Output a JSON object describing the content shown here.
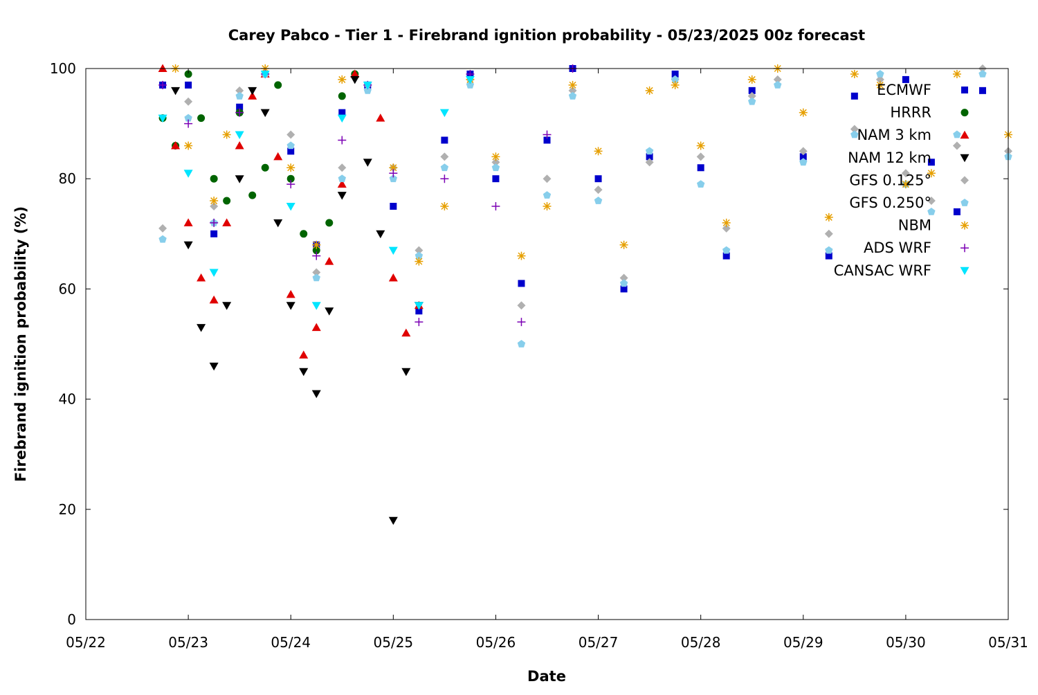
{
  "chart_data": {
    "type": "scatter",
    "title": "Carey Pabco - Tier 1 - Firebrand ignition probability - 05/23/2025 00z forecast",
    "xlabel": "Date",
    "ylabel": "Firebrand ignition probability (%)",
    "x_ticks": [
      "05/22",
      "05/23",
      "05/24",
      "05/25",
      "05/26",
      "05/27",
      "05/28",
      "05/29",
      "05/30",
      "05/31"
    ],
    "y_ticks": [
      "0",
      "20",
      "40",
      "60",
      "80",
      "100"
    ],
    "xlim": [
      "2025-05-22 00:00",
      "2025-05-31 00:00"
    ],
    "ylim": [
      0,
      100
    ],
    "grid": false,
    "legend_position": "top-right",
    "series": [
      {
        "name": "ECMWF",
        "marker": "square",
        "color": "#0000cc",
        "points": [
          [
            "2025-05-22 18:00",
            97
          ],
          [
            "2025-05-23 00:00",
            97
          ],
          [
            "2025-05-23 06:00",
            70
          ],
          [
            "2025-05-23 12:00",
            93
          ],
          [
            "2025-05-23 18:00",
            99
          ],
          [
            "2025-05-24 00:00",
            85
          ],
          [
            "2025-05-24 06:00",
            68
          ],
          [
            "2025-05-24 12:00",
            92
          ],
          [
            "2025-05-24 18:00",
            97
          ],
          [
            "2025-05-25 00:00",
            75
          ],
          [
            "2025-05-25 06:00",
            56
          ],
          [
            "2025-05-25 12:00",
            87
          ],
          [
            "2025-05-25 18:00",
            99
          ],
          [
            "2025-05-26 00:00",
            80
          ],
          [
            "2025-05-26 06:00",
            61
          ],
          [
            "2025-05-26 12:00",
            87
          ],
          [
            "2025-05-26 18:00",
            100
          ],
          [
            "2025-05-27 00:00",
            80
          ],
          [
            "2025-05-27 06:00",
            60
          ],
          [
            "2025-05-27 12:00",
            84
          ],
          [
            "2025-05-27 18:00",
            99
          ],
          [
            "2025-05-28 00:00",
            82
          ],
          [
            "2025-05-28 06:00",
            66
          ],
          [
            "2025-05-28 12:00",
            96
          ],
          [
            "2025-05-29 00:00",
            84
          ],
          [
            "2025-05-29 06:00",
            66
          ],
          [
            "2025-05-29 12:00",
            95
          ],
          [
            "2025-05-30 00:00",
            98
          ],
          [
            "2025-05-30 06:00",
            83
          ],
          [
            "2025-05-30 12:00",
            74
          ],
          [
            "2025-05-30 18:00",
            96
          ]
        ]
      },
      {
        "name": "HRRR",
        "marker": "circle",
        "color": "#006400",
        "points": [
          [
            "2025-05-22 18:00",
            91
          ],
          [
            "2025-05-22 21:00",
            86
          ],
          [
            "2025-05-23 00:00",
            99
          ],
          [
            "2025-05-23 03:00",
            91
          ],
          [
            "2025-05-23 06:00",
            80
          ],
          [
            "2025-05-23 09:00",
            76
          ],
          [
            "2025-05-23 12:00",
            92
          ],
          [
            "2025-05-23 15:00",
            77
          ],
          [
            "2025-05-23 18:00",
            82
          ],
          [
            "2025-05-23 21:00",
            97
          ],
          [
            "2025-05-24 00:00",
            80
          ],
          [
            "2025-05-24 03:00",
            70
          ],
          [
            "2025-05-24 06:00",
            67
          ],
          [
            "2025-05-24 09:00",
            72
          ],
          [
            "2025-05-24 12:00",
            95
          ],
          [
            "2025-05-24 15:00",
            99
          ]
        ]
      },
      {
        "name": "NAM 3 km",
        "marker": "triangle-up",
        "color": "#e00000",
        "points": [
          [
            "2025-05-22 18:00",
            100
          ],
          [
            "2025-05-22 21:00",
            86
          ],
          [
            "2025-05-23 00:00",
            72
          ],
          [
            "2025-05-23 03:00",
            62
          ],
          [
            "2025-05-23 06:00",
            58
          ],
          [
            "2025-05-23 09:00",
            72
          ],
          [
            "2025-05-23 12:00",
            86
          ],
          [
            "2025-05-23 15:00",
            95
          ],
          [
            "2025-05-23 18:00",
            99
          ],
          [
            "2025-05-23 21:00",
            84
          ],
          [
            "2025-05-24 00:00",
            59
          ],
          [
            "2025-05-24 03:00",
            48
          ],
          [
            "2025-05-24 06:00",
            53
          ],
          [
            "2025-05-24 09:00",
            65
          ],
          [
            "2025-05-24 12:00",
            79
          ],
          [
            "2025-05-24 15:00",
            99
          ],
          [
            "2025-05-24 21:00",
            91
          ],
          [
            "2025-05-25 00:00",
            62
          ],
          [
            "2025-05-25 03:00",
            52
          ],
          [
            "2025-05-25 06:00",
            57
          ]
        ]
      },
      {
        "name": "NAM 12 km",
        "marker": "triangle-down",
        "color": "#000000",
        "points": [
          [
            "2025-05-22 21:00",
            96
          ],
          [
            "2025-05-23 00:00",
            68
          ],
          [
            "2025-05-23 03:00",
            53
          ],
          [
            "2025-05-23 06:00",
            46
          ],
          [
            "2025-05-23 09:00",
            57
          ],
          [
            "2025-05-23 12:00",
            80
          ],
          [
            "2025-05-23 15:00",
            96
          ],
          [
            "2025-05-23 18:00",
            92
          ],
          [
            "2025-05-23 21:00",
            72
          ],
          [
            "2025-05-24 00:00",
            57
          ],
          [
            "2025-05-24 03:00",
            45
          ],
          [
            "2025-05-24 06:00",
            41
          ],
          [
            "2025-05-24 09:00",
            56
          ],
          [
            "2025-05-24 12:00",
            77
          ],
          [
            "2025-05-24 15:00",
            98
          ],
          [
            "2025-05-24 18:00",
            83
          ],
          [
            "2025-05-24 21:00",
            70
          ],
          [
            "2025-05-25 00:00",
            18
          ],
          [
            "2025-05-25 03:00",
            45
          ],
          [
            "2025-05-25 06:00",
            57
          ]
        ]
      },
      {
        "name": "GFS 0.125°",
        "marker": "diamond",
        "color": "#b0b0b0",
        "points": [
          [
            "2025-05-22 18:00",
            71
          ],
          [
            "2025-05-23 00:00",
            94
          ],
          [
            "2025-05-23 06:00",
            75
          ],
          [
            "2025-05-23 12:00",
            96
          ],
          [
            "2025-05-23 18:00",
            99
          ],
          [
            "2025-05-24 00:00",
            88
          ],
          [
            "2025-05-24 06:00",
            63
          ],
          [
            "2025-05-24 12:00",
            82
          ],
          [
            "2025-05-24 18:00",
            97
          ],
          [
            "2025-05-25 00:00",
            82
          ],
          [
            "2025-05-25 06:00",
            67
          ],
          [
            "2025-05-25 12:00",
            84
          ],
          [
            "2025-05-25 18:00",
            98
          ],
          [
            "2025-05-26 00:00",
            83
          ],
          [
            "2025-05-26 06:00",
            57
          ],
          [
            "2025-05-26 12:00",
            80
          ],
          [
            "2025-05-26 18:00",
            96
          ],
          [
            "2025-05-27 00:00",
            78
          ],
          [
            "2025-05-27 06:00",
            62
          ],
          [
            "2025-05-27 12:00",
            83
          ],
          [
            "2025-05-27 18:00",
            98
          ],
          [
            "2025-05-28 00:00",
            84
          ],
          [
            "2025-05-28 06:00",
            71
          ],
          [
            "2025-05-28 12:00",
            95
          ],
          [
            "2025-05-28 18:00",
            98
          ],
          [
            "2025-05-29 00:00",
            85
          ],
          [
            "2025-05-29 06:00",
            70
          ],
          [
            "2025-05-29 12:00",
            89
          ],
          [
            "2025-05-29 18:00",
            98
          ],
          [
            "2025-05-30 00:00",
            81
          ],
          [
            "2025-05-30 06:00",
            76
          ],
          [
            "2025-05-30 12:00",
            86
          ],
          [
            "2025-05-30 18:00",
            100
          ],
          [
            "2025-05-31 00:00",
            85
          ]
        ]
      },
      {
        "name": "GFS 0.250°",
        "marker": "pentagon",
        "color": "#87ceeb",
        "points": [
          [
            "2025-05-22 18:00",
            69
          ],
          [
            "2025-05-23 00:00",
            91
          ],
          [
            "2025-05-23 06:00",
            72
          ],
          [
            "2025-05-23 12:00",
            95
          ],
          [
            "2025-05-23 18:00",
            99
          ],
          [
            "2025-05-24 00:00",
            86
          ],
          [
            "2025-05-24 06:00",
            62
          ],
          [
            "2025-05-24 12:00",
            80
          ],
          [
            "2025-05-24 18:00",
            96
          ],
          [
            "2025-05-25 00:00",
            80
          ],
          [
            "2025-05-25 06:00",
            66
          ],
          [
            "2025-05-25 12:00",
            82
          ],
          [
            "2025-05-25 18:00",
            97
          ],
          [
            "2025-05-26 00:00",
            82
          ],
          [
            "2025-05-26 06:00",
            50
          ],
          [
            "2025-05-26 12:00",
            77
          ],
          [
            "2025-05-26 18:00",
            95
          ],
          [
            "2025-05-27 00:00",
            76
          ],
          [
            "2025-05-27 06:00",
            61
          ],
          [
            "2025-05-27 12:00",
            85
          ],
          [
            "2025-05-27 18:00",
            98
          ],
          [
            "2025-05-28 00:00",
            79
          ],
          [
            "2025-05-28 06:00",
            67
          ],
          [
            "2025-05-28 12:00",
            94
          ],
          [
            "2025-05-28 18:00",
            97
          ],
          [
            "2025-05-29 00:00",
            83
          ],
          [
            "2025-05-29 06:00",
            67
          ],
          [
            "2025-05-29 12:00",
            88
          ],
          [
            "2025-05-29 18:00",
            99
          ],
          [
            "2025-05-30 00:00",
            79
          ],
          [
            "2025-05-30 06:00",
            74
          ],
          [
            "2025-05-30 12:00",
            88
          ],
          [
            "2025-05-30 18:00",
            99
          ],
          [
            "2025-05-31 00:00",
            84
          ]
        ]
      },
      {
        "name": "NBM",
        "marker": "asterisk",
        "color": "#e69f00",
        "points": [
          [
            "2025-05-22 21:00",
            100
          ],
          [
            "2025-05-23 00:00",
            86
          ],
          [
            "2025-05-23 06:00",
            76
          ],
          [
            "2025-05-23 09:00",
            88
          ],
          [
            "2025-05-23 18:00",
            100
          ],
          [
            "2025-05-24 00:00",
            82
          ],
          [
            "2025-05-24 06:00",
            68
          ],
          [
            "2025-05-24 12:00",
            98
          ],
          [
            "2025-05-25 00:00",
            82
          ],
          [
            "2025-05-25 06:00",
            65
          ],
          [
            "2025-05-25 12:00",
            75
          ],
          [
            "2025-05-25 18:00",
            98
          ],
          [
            "2025-05-26 00:00",
            84
          ],
          [
            "2025-05-26 06:00",
            66
          ],
          [
            "2025-05-26 12:00",
            75
          ],
          [
            "2025-05-26 18:00",
            97
          ],
          [
            "2025-05-27 00:00",
            85
          ],
          [
            "2025-05-27 06:00",
            68
          ],
          [
            "2025-05-27 12:00",
            96
          ],
          [
            "2025-05-27 18:00",
            97
          ],
          [
            "2025-05-28 00:00",
            86
          ],
          [
            "2025-05-28 06:00",
            72
          ],
          [
            "2025-05-28 12:00",
            98
          ],
          [
            "2025-05-28 18:00",
            100
          ],
          [
            "2025-05-29 00:00",
            92
          ],
          [
            "2025-05-29 06:00",
            73
          ],
          [
            "2025-05-29 12:00",
            99
          ],
          [
            "2025-05-29 18:00",
            97
          ],
          [
            "2025-05-30 00:00",
            79
          ],
          [
            "2025-05-30 06:00",
            81
          ],
          [
            "2025-05-30 12:00",
            99
          ],
          [
            "2025-05-31 00:00",
            88
          ]
        ]
      },
      {
        "name": "ADS WRF",
        "marker": "plus",
        "color": "#7b00b4",
        "points": [
          [
            "2025-05-22 18:00",
            97
          ],
          [
            "2025-05-23 00:00",
            90
          ],
          [
            "2025-05-23 06:00",
            72
          ],
          [
            "2025-05-23 12:00",
            92
          ],
          [
            "2025-05-23 18:00",
            99
          ],
          [
            "2025-05-24 00:00",
            79
          ],
          [
            "2025-05-24 06:00",
            66
          ],
          [
            "2025-05-24 12:00",
            87
          ],
          [
            "2025-05-24 18:00",
            97
          ],
          [
            "2025-05-25 00:00",
            81
          ],
          [
            "2025-05-25 06:00",
            54
          ],
          [
            "2025-05-25 12:00",
            80
          ],
          [
            "2025-05-25 18:00",
            99
          ],
          [
            "2025-05-26 00:00",
            75
          ],
          [
            "2025-05-26 06:00",
            54
          ],
          [
            "2025-05-26 12:00",
            88
          ],
          [
            "2025-05-26 18:00",
            100
          ]
        ]
      },
      {
        "name": "CANSAC WRF",
        "marker": "triangle-down",
        "color": "#00e5ff",
        "points": [
          [
            "2025-05-22 18:00",
            91
          ],
          [
            "2025-05-23 00:00",
            81
          ],
          [
            "2025-05-23 06:00",
            63
          ],
          [
            "2025-05-23 12:00",
            88
          ],
          [
            "2025-05-23 18:00",
            99
          ],
          [
            "2025-05-24 00:00",
            75
          ],
          [
            "2025-05-24 06:00",
            57
          ],
          [
            "2025-05-24 12:00",
            91
          ],
          [
            "2025-05-24 18:00",
            97
          ],
          [
            "2025-05-25 00:00",
            67
          ],
          [
            "2025-05-25 06:00",
            57
          ],
          [
            "2025-05-25 12:00",
            92
          ],
          [
            "2025-05-25 18:00",
            98
          ]
        ]
      }
    ]
  }
}
